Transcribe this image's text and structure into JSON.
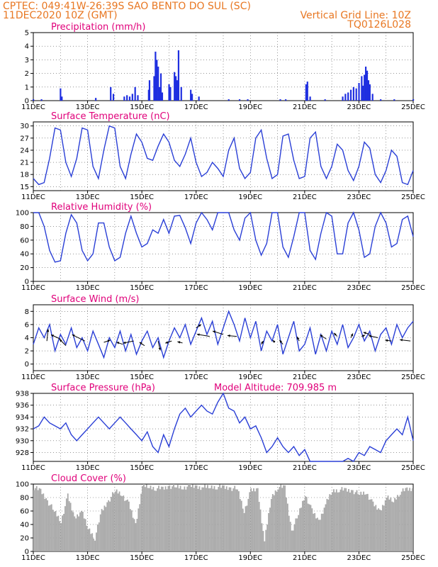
{
  "header": {
    "line1": "CPTEC:   049:41W-26:39S   SAO BENTO DO SUL (SC)",
    "line2_left": "11DEC2020 10Z (GMT)",
    "line2_right": "Vertical Grid Line: 10Z",
    "line3_right": "TQ0126L028"
  },
  "colors": {
    "header": "#e87722",
    "panel_title": "#e0007a",
    "line": "#2a3fd6",
    "bar": "#1f2fe0",
    "cloud": "#a8a8a8",
    "grid": "#555555"
  },
  "x_labels": [
    "11DEC",
    "13DEC",
    "15DEC",
    "17DEC",
    "19DEC",
    "21DEC",
    "23DEC",
    "25DEC"
  ],
  "chart_data": [
    {
      "id": "precip",
      "type": "bar",
      "title": "Precipitation (mm/h)",
      "ylim": [
        0,
        5
      ],
      "yticks": [
        0,
        1,
        2,
        3,
        4,
        5
      ],
      "x_day_offsets": [
        0.0,
        0.3,
        1.0,
        1.05,
        2.3,
        2.85,
        2.95,
        3.35,
        3.45,
        3.55,
        3.65,
        3.75,
        3.85,
        4.25,
        4.28,
        4.45,
        4.5,
        4.55,
        4.6,
        4.65,
        4.7,
        4.75,
        5.0,
        5.05,
        5.2,
        5.25,
        5.3,
        5.35,
        5.45,
        5.8,
        5.85,
        6.1,
        7.2,
        7.6,
        7.9,
        9.1,
        9.3,
        10.05,
        10.1,
        10.2,
        10.75,
        11.4,
        11.5,
        11.6,
        11.7,
        11.8,
        11.9,
        12.0,
        12.1,
        12.15,
        12.2,
        12.25,
        12.3,
        12.35,
        12.4,
        12.5,
        12.8,
        13.3,
        14.0
      ],
      "values": [
        0.1,
        0.1,
        0.9,
        0.3,
        0.2,
        1.0,
        0.5,
        0.3,
        0.4,
        0.3,
        0.5,
        1.0,
        0.4,
        0.8,
        1.5,
        1.8,
        3.6,
        3.0,
        2.5,
        1.0,
        2.0,
        0.6,
        1.2,
        1.0,
        2.1,
        1.8,
        1.5,
        3.7,
        1.0,
        0.8,
        0.5,
        0.3,
        0.1,
        0.1,
        0.1,
        0.1,
        0.1,
        1.2,
        1.4,
        0.3,
        0.1,
        0.3,
        0.5,
        0.6,
        0.8,
        1.0,
        0.9,
        1.3,
        1.8,
        1.1,
        1.9,
        2.5,
        2.2,
        1.5,
        1.2,
        0.5,
        0.1,
        0.1,
        0.1
      ]
    },
    {
      "id": "temp",
      "type": "line",
      "title": "Surface Temperature (nC)",
      "ylim": [
        14,
        31
      ],
      "yticks": [
        15,
        18,
        21,
        24,
        27,
        30
      ],
      "x_day_offsets": [
        0.0,
        0.2,
        0.4,
        0.6,
        0.8,
        1.0,
        1.2,
        1.4,
        1.6,
        1.8,
        2.0,
        2.2,
        2.4,
        2.6,
        2.8,
        3.0,
        3.2,
        3.4,
        3.6,
        3.8,
        4.0,
        4.2,
        4.4,
        4.6,
        4.8,
        5.0,
        5.2,
        5.4,
        5.6,
        5.8,
        6.0,
        6.2,
        6.4,
        6.6,
        6.8,
        7.0,
        7.2,
        7.4,
        7.6,
        7.8,
        8.0,
        8.2,
        8.4,
        8.6,
        8.8,
        9.0,
        9.2,
        9.4,
        9.6,
        9.8,
        10.0,
        10.2,
        10.4,
        10.6,
        10.8,
        11.0,
        11.2,
        11.4,
        11.6,
        11.8,
        12.0,
        12.2,
        12.4,
        12.6,
        12.8,
        13.0,
        13.2,
        13.4,
        13.6,
        13.8,
        14.0
      ],
      "values": [
        17,
        15.5,
        16,
        22,
        29.5,
        29,
        21,
        17.5,
        22,
        29.5,
        29,
        20,
        17,
        24,
        30,
        29.5,
        20,
        17,
        23,
        28,
        26,
        22,
        21.5,
        25,
        28,
        26,
        21.5,
        20,
        23,
        27,
        21,
        17.5,
        18.5,
        21,
        19.5,
        17.5,
        24,
        27,
        19.5,
        17,
        18.5,
        27,
        29,
        22,
        17,
        18,
        27.5,
        28,
        21.5,
        17,
        17.5,
        27,
        28.5,
        20,
        17,
        20,
        25.5,
        24,
        19,
        16.5,
        20,
        26,
        24.5,
        18,
        16,
        19,
        24,
        22.5,
        16,
        15.5,
        19
      ]
    },
    {
      "id": "rh",
      "type": "line",
      "title": "Relative Humidity (%)",
      "ylim": [
        0,
        100
      ],
      "yticks": [
        0,
        20,
        40,
        60,
        80,
        100
      ],
      "x_day_offsets": [
        0.0,
        0.2,
        0.4,
        0.6,
        0.8,
        1.0,
        1.2,
        1.4,
        1.6,
        1.8,
        2.0,
        2.2,
        2.4,
        2.6,
        2.8,
        3.0,
        3.2,
        3.4,
        3.6,
        3.8,
        4.0,
        4.2,
        4.4,
        4.6,
        4.8,
        5.0,
        5.2,
        5.4,
        5.6,
        5.8,
        6.0,
        6.2,
        6.4,
        6.6,
        6.8,
        7.0,
        7.2,
        7.4,
        7.6,
        7.8,
        8.0,
        8.2,
        8.4,
        8.6,
        8.8,
        9.0,
        9.2,
        9.4,
        9.6,
        9.8,
        10.0,
        10.2,
        10.4,
        10.6,
        10.8,
        11.0,
        11.2,
        11.4,
        11.6,
        11.8,
        12.0,
        12.2,
        12.4,
        12.6,
        12.8,
        13.0,
        13.2,
        13.4,
        13.6,
        13.8,
        14.0
      ],
      "values": [
        100,
        100,
        80,
        45,
        28,
        30,
        70,
        97,
        85,
        45,
        30,
        40,
        85,
        85,
        50,
        30,
        35,
        70,
        95,
        70,
        50,
        55,
        75,
        70,
        90,
        70,
        95,
        96,
        78,
        55,
        85,
        100,
        90,
        75,
        100,
        100,
        100,
        75,
        60,
        92,
        100,
        60,
        38,
        55,
        100,
        100,
        50,
        35,
        65,
        100,
        100,
        45,
        32,
        70,
        100,
        95,
        40,
        40,
        85,
        100,
        75,
        35,
        40,
        80,
        100,
        85,
        50,
        55,
        90,
        95,
        65
      ]
    },
    {
      "id": "wind",
      "type": "line",
      "title": "Surface Wind (m/s)",
      "ylim": [
        -1,
        9
      ],
      "yticks": [
        0,
        2,
        4,
        6,
        8
      ],
      "x_day_offsets": [
        0.0,
        0.2,
        0.4,
        0.6,
        0.8,
        1.0,
        1.2,
        1.4,
        1.6,
        1.8,
        2.0,
        2.2,
        2.4,
        2.6,
        2.8,
        3.0,
        3.2,
        3.4,
        3.6,
        3.8,
        4.0,
        4.2,
        4.4,
        4.6,
        4.8,
        5.0,
        5.2,
        5.4,
        5.6,
        5.8,
        6.0,
        6.2,
        6.4,
        6.6,
        6.8,
        7.0,
        7.2,
        7.4,
        7.6,
        7.8,
        8.0,
        8.2,
        8.4,
        8.6,
        8.8,
        9.0,
        9.2,
        9.4,
        9.6,
        9.8,
        10.0,
        10.2,
        10.4,
        10.6,
        10.8,
        11.0,
        11.2,
        11.4,
        11.6,
        11.8,
        12.0,
        12.2,
        12.4,
        12.6,
        12.8,
        13.0,
        13.2,
        13.4,
        13.6,
        13.8,
        14.0
      ],
      "values": [
        3,
        5.5,
        4,
        6,
        2,
        4.5,
        3,
        5.5,
        2.5,
        4,
        2,
        5,
        3,
        1,
        4,
        2.5,
        5,
        2,
        4.5,
        1.5,
        3.5,
        5,
        2.5,
        4,
        1,
        3.5,
        5.5,
        4,
        6,
        3,
        5,
        7,
        4.5,
        6.5,
        3,
        5.5,
        8,
        6,
        3.5,
        7,
        4,
        6.5,
        2,
        5,
        3.5,
        6,
        1.5,
        4,
        6.5,
        2,
        3,
        5.5,
        1.5,
        4.5,
        2,
        5,
        3,
        6,
        2.5,
        4,
        6,
        3.5,
        5,
        2,
        4.5,
        5.5,
        3,
        6,
        4,
        5.5,
        6.5
      ],
      "barbs_day_offsets": [
        0.5,
        1.0,
        1.2,
        1.9,
        2.6,
        3.3,
        3.7,
        4.1,
        4.6,
        5.1,
        5.5,
        6.0,
        6.5,
        7.0,
        7.5,
        8.4,
        8.9,
        9.2,
        9.8,
        10.8,
        11.2,
        11.7,
        12.1,
        12.4,
        12.7,
        13.2,
        13.9
      ],
      "barbs_y": [
        3.5,
        3.8,
        2.8,
        3.5,
        3.3,
        3.0,
        3.5,
        2.8,
        3.5,
        3.5,
        3.2,
        5.5,
        4.2,
        4.5,
        4.2,
        3.0,
        3.3,
        3.0,
        3.5,
        3.8,
        4.2,
        4.0,
        4.2,
        4.5,
        4.0,
        3.5,
        3.5
      ],
      "barbs_u": [
        0.3,
        -2.2,
        -1.5,
        -3,
        1.5,
        -1.5,
        -2.5,
        -1.2,
        0.5,
        -1.5,
        -1.2,
        1.2,
        -3,
        -2.5,
        -2.2,
        0.5,
        -0.5,
        -0.8,
        -0.5,
        -1.5,
        -0.8,
        0.5,
        0.8,
        -1.5,
        -2.2,
        -1.5,
        -2.5
      ],
      "barbs_v": [
        2.8,
        1.0,
        1.5,
        1.5,
        0.5,
        0.5,
        -0.5,
        0.8,
        -2.2,
        -0.5,
        0.3,
        0.8,
        0.5,
        0.8,
        0.2,
        0.8,
        0.5,
        1.0,
        1.0,
        1.0,
        0.8,
        1.0,
        0.3,
        0.5,
        0.5,
        0.2,
        0.3
      ]
    },
    {
      "id": "pressure",
      "type": "line",
      "title": "Surface Pressure (hPa)",
      "extra_label": "Model Altitude: 709.985  m",
      "ylim": [
        926.5,
        938
      ],
      "yticks": [
        928,
        930,
        932,
        934,
        936,
        938
      ],
      "x_day_offsets": [
        0.0,
        0.2,
        0.4,
        0.6,
        0.8,
        1.0,
        1.2,
        1.4,
        1.6,
        1.8,
        2.0,
        2.2,
        2.4,
        2.6,
        2.8,
        3.0,
        3.2,
        3.4,
        3.6,
        3.8,
        4.0,
        4.2,
        4.4,
        4.6,
        4.8,
        5.0,
        5.2,
        5.4,
        5.6,
        5.8,
        6.0,
        6.2,
        6.4,
        6.6,
        6.8,
        7.0,
        7.2,
        7.4,
        7.6,
        7.8,
        8.0,
        8.2,
        8.4,
        8.6,
        8.8,
        9.0,
        9.2,
        9.4,
        9.6,
        9.8,
        10.0,
        10.2,
        10.4,
        10.6,
        10.8,
        11.0,
        11.2,
        11.4,
        11.6,
        11.8,
        12.0,
        12.2,
        12.4,
        12.6,
        12.8,
        13.0,
        13.2,
        13.4,
        13.6,
        13.8,
        14.0
      ],
      "values": [
        932,
        932.5,
        934,
        933,
        932.5,
        932,
        933,
        931,
        930,
        931,
        932,
        933,
        934,
        933,
        932,
        933,
        934,
        933,
        932,
        931,
        930,
        931.5,
        929,
        928,
        931,
        929,
        932,
        934.5,
        935.5,
        934,
        935,
        936,
        935,
        934.5,
        936.5,
        938,
        935.5,
        935,
        933,
        934,
        932,
        932.5,
        930.5,
        928,
        929,
        930.5,
        929,
        928,
        929,
        927.5,
        928.5,
        926,
        926.5,
        925,
        926,
        926.5,
        925.5,
        926.5,
        927,
        926,
        928,
        927.5,
        929,
        928.5,
        928,
        930,
        931,
        932,
        931,
        934,
        930
      ]
    },
    {
      "id": "cloud",
      "type": "area",
      "title": "Cloud Cover (%)",
      "ylim": [
        0,
        100
      ],
      "yticks": [
        0,
        20,
        40,
        60,
        80,
        100
      ],
      "x_day_offsets": [
        0.0,
        0.25,
        0.5,
        0.75,
        1.0,
        1.25,
        1.5,
        1.75,
        2.0,
        2.25,
        2.5,
        2.75,
        3.0,
        3.25,
        3.5,
        3.75,
        4.0,
        4.25,
        4.5,
        4.75,
        5.0,
        5.25,
        5.5,
        5.75,
        6.0,
        6.25,
        6.5,
        6.75,
        7.0,
        7.25,
        7.5,
        7.75,
        8.0,
        8.25,
        8.5,
        8.75,
        9.0,
        9.25,
        9.5,
        9.75,
        10.0,
        10.25,
        10.5,
        10.75,
        11.0,
        11.25,
        11.5,
        11.75,
        12.0,
        12.25,
        12.5,
        12.75,
        13.0,
        13.25,
        13.5,
        13.75,
        14.0
      ],
      "values": [
        95,
        90,
        75,
        60,
        45,
        82,
        50,
        60,
        35,
        20,
        60,
        75,
        90,
        85,
        70,
        40,
        97,
        96,
        94,
        93,
        97,
        96,
        95,
        97,
        96,
        95,
        96,
        96,
        95,
        94,
        93,
        60,
        90,
        92,
        15,
        80,
        96,
        95,
        30,
        55,
        85,
        60,
        45,
        70,
        90,
        92,
        91,
        90,
        85,
        88,
        70,
        60,
        80,
        75,
        88,
        92,
        93
      ]
    }
  ]
}
